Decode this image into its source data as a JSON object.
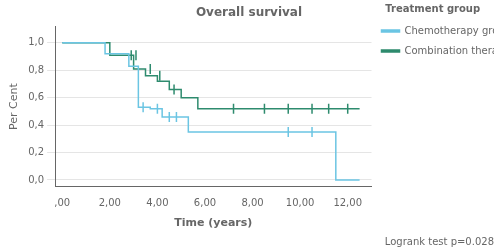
{
  "chart_data": {
    "type": "step",
    "title": "Overall survival",
    "xlabel": "Time (years)",
    "ylabel": "Per Cent",
    "xlim": [
      -0.3,
      13.0
    ],
    "ylim": [
      -0.05,
      1.12
    ],
    "xticks": [
      {
        "value": 0,
        "label": ",00"
      },
      {
        "value": 2,
        "label": "2,00"
      },
      {
        "value": 4,
        "label": "4,00"
      },
      {
        "value": 6,
        "label": "6,00"
      },
      {
        "value": 8,
        "label": "8,00"
      },
      {
        "value": 10,
        "label": "10,00"
      },
      {
        "value": 12,
        "label": "12,00"
      }
    ],
    "yticks": [
      {
        "value": 0.0,
        "label": "0,0"
      },
      {
        "value": 0.2,
        "label": "0,2"
      },
      {
        "value": 0.4,
        "label": "0,4"
      },
      {
        "value": 0.6,
        "label": "0,6"
      },
      {
        "value": 0.8,
        "label": "0,8"
      },
      {
        "value": 1.0,
        "label": "1,0"
      }
    ],
    "grid": "y",
    "legend": "right",
    "legend_title": "Treatment group",
    "annotation": "Logrank test p=0.028",
    "series": [
      {
        "name": "Chemotherapy group",
        "color": "#6BC5E3",
        "x": [
          0.0,
          0.8,
          1.8,
          2.8,
          3.2,
          3.2,
          3.7,
          3.7,
          4.2,
          4.2,
          4.7,
          4.7,
          5.0,
          5.0,
          5.3,
          5.3,
          6.2,
          6.2,
          11.5,
          11.5,
          12.5
        ],
        "values": [
          1.0,
          1.0,
          0.92,
          0.83,
          0.83,
          0.53,
          0.53,
          0.52,
          0.52,
          0.46,
          0.46,
          0.46,
          0.46,
          0.46,
          0.46,
          0.35,
          0.35,
          0.35,
          0.35,
          0.0,
          0.0
        ],
        "censor_x": [
          3.4,
          4.0,
          4.5,
          4.8,
          9.5,
          10.5
        ],
        "censor_values": [
          0.53,
          0.52,
          0.46,
          0.46,
          0.35,
          0.35
        ]
      },
      {
        "name": "Combination therapy group",
        "color": "#2E8B6E",
        "x": [
          0.0,
          2.0,
          2.0,
          3.0,
          3.0,
          3.5,
          3.5,
          4.0,
          4.0,
          4.5,
          4.5,
          5.0,
          5.0,
          5.7,
          5.7,
          6.2,
          6.2,
          12.5
        ],
        "values": [
          1.0,
          1.0,
          0.91,
          0.91,
          0.81,
          0.81,
          0.76,
          0.76,
          0.72,
          0.72,
          0.66,
          0.66,
          0.6,
          0.6,
          0.52,
          0.52,
          0.52,
          0.52
        ],
        "censor_x": [
          2.9,
          3.1,
          3.7,
          4.1,
          4.7,
          7.2,
          8.5,
          9.5,
          10.5,
          11.2,
          12.0
        ],
        "censor_values": [
          0.91,
          0.91,
          0.81,
          0.76,
          0.66,
          0.52,
          0.52,
          0.52,
          0.52,
          0.52,
          0.52
        ]
      }
    ]
  }
}
